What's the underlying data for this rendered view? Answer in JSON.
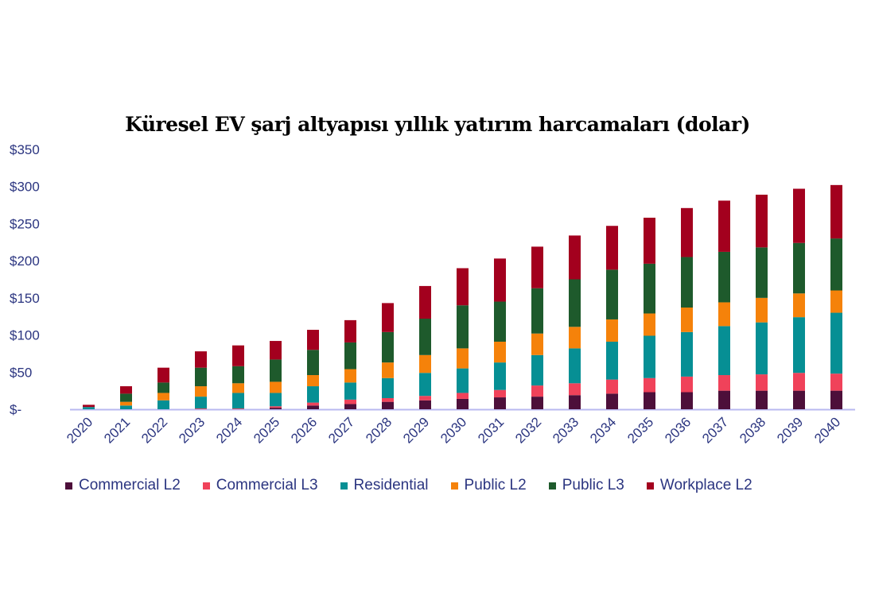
{
  "chart_data": {
    "type": "bar",
    "stacked": true,
    "title": "Küresel EV şarj altyapısı yıllık yatırım harcamaları (dolar)",
    "xlabel": "",
    "ylabel": "",
    "ylim": [
      0,
      350
    ],
    "yticks": [
      0,
      50,
      100,
      150,
      200,
      250,
      300,
      350
    ],
    "ytick_labels": [
      "$-",
      "$50",
      "$100",
      "$150",
      "$200",
      "$250",
      "$300",
      "$350"
    ],
    "legend_position": "bottom",
    "grid": false,
    "categories": [
      "2020",
      "2021",
      "2022",
      "2023",
      "2024",
      "2025",
      "2026",
      "2027",
      "2028",
      "2029",
      "2030",
      "2031",
      "2032",
      "2033",
      "2034",
      "2035",
      "2036",
      "2037",
      "2038",
      "2039",
      "2040"
    ],
    "series": [
      {
        "name": "Commercial L2",
        "color": "#4d0f3a",
        "values": [
          0,
          0,
          0,
          0,
          0,
          2,
          5,
          7,
          10,
          12,
          14,
          16,
          17,
          19,
          21,
          23,
          23,
          25,
          25,
          25,
          25
        ]
      },
      {
        "name": "Commercial L3",
        "color": "#f0425a",
        "values": [
          0,
          0,
          0,
          1,
          1,
          2,
          4,
          6,
          5,
          6,
          8,
          10,
          15,
          16,
          19,
          19,
          21,
          21,
          22,
          24,
          23
        ]
      },
      {
        "name": "Residential",
        "color": "#068f94",
        "values": [
          3,
          5,
          12,
          16,
          21,
          18,
          22,
          23,
          27,
          31,
          33,
          37,
          41,
          47,
          51,
          57,
          60,
          66,
          70,
          75,
          82
        ]
      },
      {
        "name": "Public L2",
        "color": "#f5820a",
        "values": [
          0,
          5,
          10,
          14,
          13,
          15,
          15,
          18,
          21,
          24,
          27,
          28,
          29,
          29,
          30,
          30,
          33,
          32,
          33,
          32,
          30
        ]
      },
      {
        "name": "Public L3",
        "color": "#1e5a2c",
        "values": [
          0,
          11,
          14,
          25,
          23,
          30,
          34,
          36,
          41,
          49,
          58,
          54,
          61,
          64,
          67,
          67,
          68,
          68,
          68,
          68,
          70
        ]
      },
      {
        "name": "Workplace L2",
        "color": "#a3001e",
        "values": [
          3,
          10,
          20,
          22,
          28,
          25,
          27,
          30,
          39,
          44,
          50,
          58,
          56,
          59,
          59,
          62,
          66,
          69,
          71,
          73,
          72
        ]
      }
    ]
  }
}
